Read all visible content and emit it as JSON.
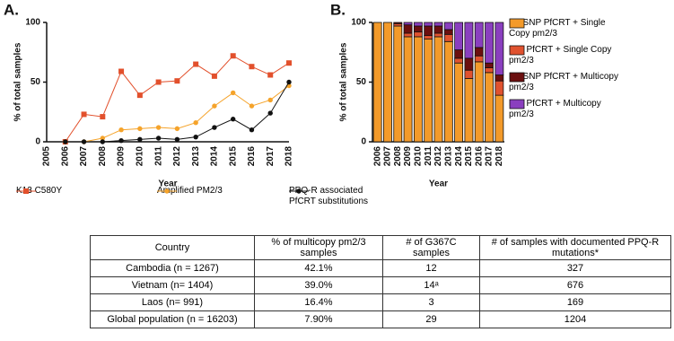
{
  "chart_data": [
    {
      "type": "line",
      "panel_label": "A.",
      "x_label": "Year",
      "y_label": "% of total samples",
      "categories": [
        "2005",
        "2006",
        "2007",
        "2008",
        "2009",
        "2010",
        "2011",
        "2012",
        "2013",
        "2014",
        "2015",
        "2016",
        "2017",
        "2018"
      ],
      "ylim": [
        0,
        100
      ],
      "yticks": [
        0,
        50,
        100
      ],
      "series": [
        {
          "name": "K13 C580Y",
          "color": "#e2502c",
          "marker": "square",
          "values": [
            null,
            0,
            23,
            21,
            59,
            39,
            50,
            51,
            65,
            55,
            72,
            63,
            56,
            66
          ]
        },
        {
          "name": "Amplified PM2/3",
          "color": "#f5a32a",
          "marker": "circle",
          "values": [
            null,
            0,
            0,
            3,
            10,
            11,
            12,
            11,
            16,
            30,
            41,
            30,
            35,
            47
          ]
        },
        {
          "name": "PPQ-R associated PfCRT substitutions",
          "color": "#111111",
          "marker": "circle",
          "values": [
            null,
            0,
            0,
            0,
            1,
            2,
            3,
            2,
            4,
            12,
            19,
            10,
            24,
            50
          ]
        }
      ]
    },
    {
      "type": "bar",
      "stacked": true,
      "panel_label": "B.",
      "x_label": "Year",
      "y_label": "% of total samples",
      "categories": [
        "2006",
        "2007",
        "2008",
        "2009",
        "2010",
        "2011",
        "2012",
        "2013",
        "2014",
        "2015",
        "2016",
        "2017",
        "2018"
      ],
      "ylim": [
        0,
        100
      ],
      "yticks": [
        0,
        50,
        100
      ],
      "series": [
        {
          "name": "No SNP PfCRT + Single Copy pm2/3",
          "color": "#f39a2a",
          "values": [
            100,
            100,
            97,
            88,
            88,
            86,
            88,
            84,
            66,
            53,
            67,
            58,
            39
          ]
        },
        {
          "name": "Mut PfCRT + Single Copy pm2/3",
          "color": "#e0522f",
          "values": [
            0,
            0,
            2,
            3,
            4,
            3,
            3,
            6,
            4,
            7,
            5,
            4,
            12
          ]
        },
        {
          "name": "No SNP PfCRT + Multicopy pm2/3",
          "color": "#6b0f0f",
          "values": [
            0,
            0,
            1,
            7,
            5,
            8,
            6,
            4,
            7,
            10,
            7,
            4,
            5
          ]
        },
        {
          "name": "Mut PfCRT + Multicopy pm2/3",
          "color": "#8a3fbf",
          "values": [
            0,
            0,
            0,
            2,
            3,
            3,
            3,
            6,
            23,
            30,
            21,
            34,
            44
          ]
        }
      ]
    }
  ],
  "table": {
    "panel_label": "C.",
    "header": [
      "Country",
      "% of multicopy pm2/3 samples",
      "# of G367C samples",
      "# of samples with documented PPQ-R mutations*"
    ],
    "rows": [
      [
        "Cambodia (n = 1267)",
        "42.1%",
        "12",
        "327"
      ],
      [
        "Vietnam (n= 1404)",
        "39.0%",
        "14ᵃ",
        "676"
      ],
      [
        "Laos (n= 991)",
        "16.4%",
        "3",
        "169"
      ],
      [
        "Global population (n = 16203)",
        "7.90%",
        "29",
        "1204"
      ]
    ]
  }
}
